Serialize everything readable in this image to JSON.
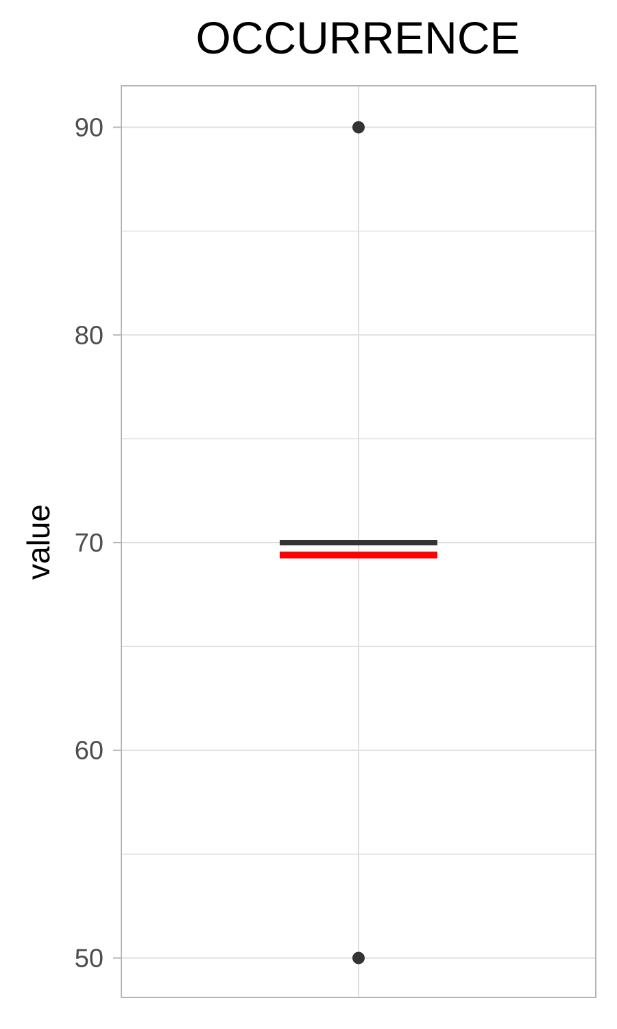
{
  "chart_data": {
    "type": "boxplot",
    "title": "OCCURRENCE",
    "xlabel": "",
    "ylabel": "value",
    "ylim": [
      48.1,
      92.0
    ],
    "yticks": [
      50,
      60,
      70,
      80,
      90
    ],
    "grid": true,
    "box": {
      "median": 70,
      "mean": 69.4,
      "q1": 70,
      "q3": 70
    },
    "points": [
      90,
      50
    ],
    "colors": {
      "median": "#333333",
      "mean": "#ff0000",
      "points": "#333333",
      "grid": "#dedede",
      "panel_border": "#b3b3b3"
    }
  }
}
